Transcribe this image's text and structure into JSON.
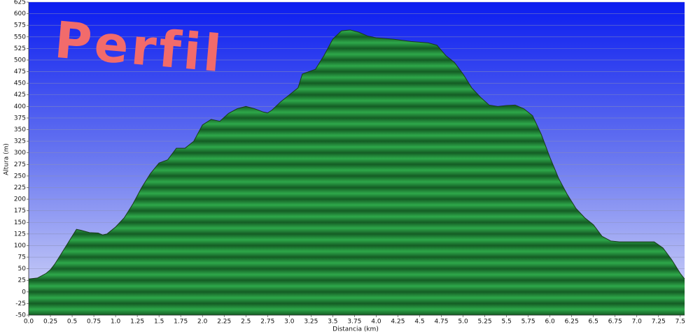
{
  "chart_data": {
    "type": "area",
    "title": "Perfil",
    "x_label": "Distancia  (km)",
    "y_label": "Altura (m)",
    "color": "#2ea84a",
    "line_color": "#1a3a1a",
    "grid": true,
    "x": [
      0,
      0.1,
      0.2,
      0.25,
      0.3,
      0.4,
      0.5,
      0.55,
      0.6,
      0.7,
      0.8,
      0.85,
      0.9,
      1.0,
      1.1,
      1.2,
      1.3,
      1.4,
      1.5,
      1.6,
      1.7,
      1.8,
      1.9,
      2.0,
      2.1,
      2.2,
      2.3,
      2.4,
      2.5,
      2.6,
      2.7,
      2.75,
      2.8,
      2.9,
      3.0,
      3.1,
      3.15,
      3.3,
      3.4,
      3.5,
      3.6,
      3.7,
      3.8,
      3.9,
      4.0,
      4.2,
      4.4,
      4.6,
      4.7,
      4.8,
      4.9,
      5.0,
      5.1,
      5.2,
      5.3,
      5.4,
      5.5,
      5.6,
      5.7,
      5.8,
      5.9,
      6.0,
      6.1,
      6.2,
      6.3,
      6.4,
      6.5,
      6.6,
      6.7,
      6.8,
      7.0,
      7.2,
      7.3,
      7.4,
      7.5,
      7.55
    ],
    "values": [
      28,
      30,
      40,
      48,
      60,
      90,
      120,
      135,
      133,
      128,
      127,
      123,
      125,
      140,
      160,
      190,
      225,
      255,
      278,
      285,
      310,
      310,
      325,
      360,
      372,
      368,
      385,
      395,
      400,
      395,
      388,
      386,
      392,
      410,
      425,
      440,
      470,
      480,
      510,
      545,
      563,
      565,
      560,
      552,
      548,
      545,
      540,
      537,
      532,
      510,
      495,
      470,
      440,
      420,
      403,
      400,
      402,
      403,
      395,
      380,
      340,
      290,
      245,
      210,
      180,
      160,
      145,
      120,
      110,
      108,
      108,
      108,
      95,
      70,
      40,
      28
    ],
    "xlim": [
      0,
      7.55
    ],
    "ylim": [
      -50,
      625
    ],
    "xticks": [
      {
        "value": 0,
        "label": "0.0"
      },
      0.25,
      0.5,
      0.75,
      {
        "value": 1,
        "label": "1.0"
      },
      1.25,
      1.5,
      1.75,
      {
        "value": 2,
        "label": "2.0"
      },
      2.25,
      2.5,
      2.75,
      {
        "value": 3,
        "label": "3.0"
      },
      3.25,
      3.5,
      3.75,
      {
        "value": 4,
        "label": "4.0"
      },
      4.25,
      4.5,
      4.75,
      {
        "value": 5,
        "label": "5.0"
      },
      5.25,
      5.5,
      5.75,
      {
        "value": 6,
        "label": "6.0"
      },
      6.25,
      6.5,
      6.75,
      {
        "value": 7,
        "label": "7.0"
      },
      7.25,
      7.5
    ],
    "yticks": [
      -50,
      -25,
      0,
      25,
      50,
      75,
      100,
      125,
      150,
      175,
      200,
      225,
      250,
      275,
      300,
      325,
      350,
      375,
      400,
      425,
      450,
      475,
      500,
      525,
      550,
      575,
      600,
      625
    ]
  }
}
